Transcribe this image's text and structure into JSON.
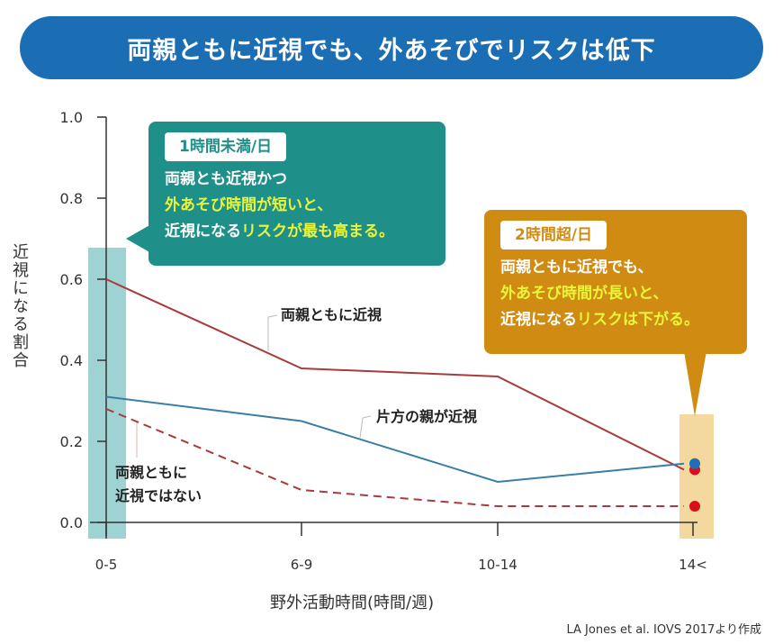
{
  "title": "両親ともに近視でも、外あそびでリスクは低下",
  "callouts": {
    "short": {
      "tag": "1時間未満/日",
      "line1": "両親とも近視かつ",
      "line2": "外あそび時間が短いと、",
      "line3a": "近視になる",
      "line3b": "リスクが最も高まる。",
      "color": "#1f8f8a"
    },
    "long": {
      "tag": "2時間超/日",
      "line1": "両親ともに近視でも、",
      "line2": "外あそび時間が長いと、",
      "line3a": "近視になる",
      "line3b": "リスクは下がる。",
      "color": "#d08c12"
    }
  },
  "source": "LA Jones et al. IOVS 2017より作成",
  "chart_data": {
    "type": "line",
    "xlabel": "野外活動時間(時間/週)",
    "ylabel": "近視になる割合",
    "categories": [
      "0-5",
      "6-9",
      "10-14",
      "14<"
    ],
    "yticks": [
      "0.0",
      "0.2",
      "0.4",
      "0.6",
      "0.8",
      "1.0"
    ],
    "ylim": [
      0,
      1.0
    ],
    "grid": false,
    "series": [
      {
        "name": "両親ともに近視",
        "values": [
          0.6,
          0.38,
          0.36,
          0.13
        ],
        "color": "#a83b3b",
        "dash": false,
        "endpoint_color": "#d8101a"
      },
      {
        "name": "片方の親が近視",
        "values": [
          0.31,
          0.25,
          0.1,
          0.145
        ],
        "color": "#3a7ea6",
        "dash": false,
        "endpoint_color": "#1e6fb8"
      },
      {
        "name_line1": "両親ともに",
        "name_line2": "近視ではない",
        "values": [
          0.28,
          0.08,
          0.04,
          0.04
        ],
        "color": "#a83b3b",
        "dash": true,
        "endpoint_color": "#d8101a"
      }
    ],
    "highlight_colors": {
      "short": "#9fd3d3",
      "long": "#f3d8a0"
    }
  }
}
